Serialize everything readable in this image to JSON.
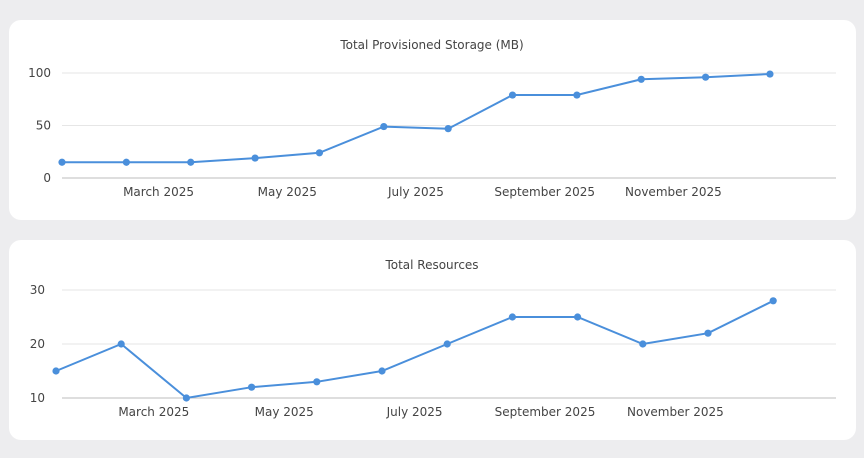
{
  "colors": {
    "line": "#4a8fdb",
    "background": "#ededef",
    "card": "#ffffff"
  },
  "chart_data": [
    {
      "type": "line",
      "title": "Total Provisioned Storage (MB)",
      "x": [
        "2025-01-15",
        "2025-02-15",
        "2025-03-15",
        "2025-04-15",
        "2025-05-15",
        "2025-06-15",
        "2025-07-15",
        "2025-08-15",
        "2025-09-15",
        "2025-10-15",
        "2025-11-15",
        "2025-12-15"
      ],
      "values": [
        15,
        15,
        15,
        19,
        24,
        49,
        47,
        79,
        79,
        94,
        96,
        99
      ],
      "xticks": [
        "March 2025",
        "May 2025",
        "July 2025",
        "September 2025",
        "November 2025"
      ],
      "yticks": [
        0,
        50,
        100
      ],
      "ylim": [
        0,
        100
      ],
      "grid": true
    },
    {
      "type": "line",
      "title": "Total Resources",
      "x": [
        "2025-01-15",
        "2025-02-15",
        "2025-03-15",
        "2025-04-15",
        "2025-05-15",
        "2025-06-15",
        "2025-07-15",
        "2025-08-15",
        "2025-09-15",
        "2025-10-15",
        "2025-11-15",
        "2025-12-15"
      ],
      "values": [
        15,
        20,
        10,
        12,
        13,
        15,
        20,
        25,
        25,
        20,
        22,
        28
      ],
      "xticks": [
        "March 2025",
        "May 2025",
        "July 2025",
        "September 2025",
        "November 2025"
      ],
      "yticks": [
        10,
        20,
        30
      ],
      "ylim": [
        10,
        30
      ],
      "grid": true
    }
  ]
}
